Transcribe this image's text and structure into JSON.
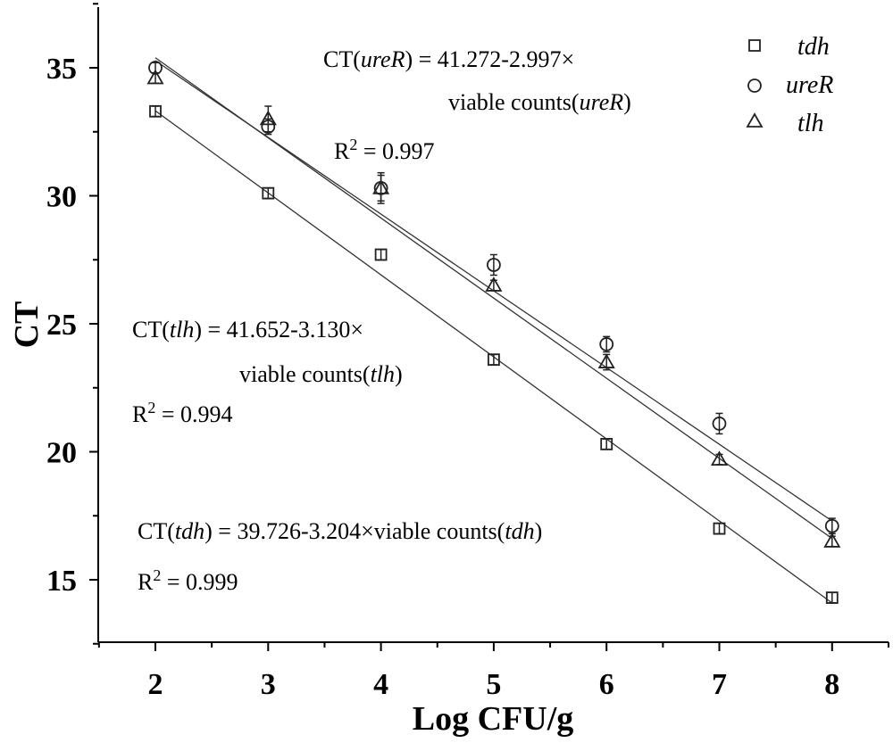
{
  "chart_data": {
    "type": "scatter",
    "title": "",
    "xlabel": "Log CFU/g",
    "ylabel": "CT",
    "xlim": [
      1.5,
      8.5
    ],
    "ylim": [
      12.5,
      37.5
    ],
    "xticks": [
      "2",
      "3",
      "4",
      "5",
      "6",
      "7",
      "8"
    ],
    "yticks": [
      "15",
      "20",
      "25",
      "30",
      "35"
    ],
    "x": [
      2,
      3,
      4,
      5,
      6,
      7,
      8
    ],
    "grid": false,
    "legend_position": "top-right",
    "series": [
      {
        "name": "tdh",
        "marker": "square",
        "values": [
          33.3,
          30.1,
          27.7,
          23.6,
          20.3,
          17.0,
          14.3
        ],
        "errors": [
          0.2,
          0.2,
          0.2,
          0.2,
          0.2,
          0.2,
          0.2
        ],
        "fit": {
          "intercept": 39.726,
          "slope": -3.204
        }
      },
      {
        "name": "ureR",
        "marker": "circle",
        "values": [
          35.0,
          32.7,
          30.3,
          27.3,
          24.2,
          21.1,
          17.1
        ],
        "errors": [
          0.2,
          0.3,
          0.5,
          0.4,
          0.3,
          0.4,
          0.3
        ],
        "fit": {
          "intercept": 41.272,
          "slope": -2.997
        }
      },
      {
        "name": "tlh",
        "marker": "triangle",
        "values": [
          34.6,
          33.0,
          30.3,
          26.5,
          23.5,
          19.7,
          16.5
        ],
        "errors": [
          0.2,
          0.5,
          0.6,
          0.2,
          0.3,
          0.2,
          0.2
        ],
        "fit": {
          "intercept": 41.652,
          "slope": -3.13
        }
      }
    ],
    "annotations": [
      {
        "id": "ureR",
        "eq_prefix": "CT(",
        "eq_italic": "ureR",
        "eq_suffix": ") = 41.272-2.997×",
        "line2_prefix": "viable counts(",
        "line2_italic": "ureR",
        "line2_suffix": ")",
        "r2_prefix": "R",
        "r2_sup": "2",
        "r2_value": " = 0.997"
      },
      {
        "id": "tlh",
        "eq_prefix": "CT(",
        "eq_italic": "tlh",
        "eq_suffix": ") = 41.652-3.130×",
        "line2_prefix": "viable counts(",
        "line2_italic": "tlh",
        "line2_suffix": ")",
        "r2_prefix": "R",
        "r2_sup": "2",
        "r2_value": " = 0.994"
      },
      {
        "id": "tdh",
        "eq_prefix": "CT(",
        "eq_italic": "tdh",
        "eq_suffix": ") = 39.726-3.204×viable counts(",
        "eq_italic2": "tdh",
        "eq_suffix2": ")",
        "r2_prefix": "R",
        "r2_sup": "2",
        "r2_value": " = 0.999"
      }
    ]
  }
}
